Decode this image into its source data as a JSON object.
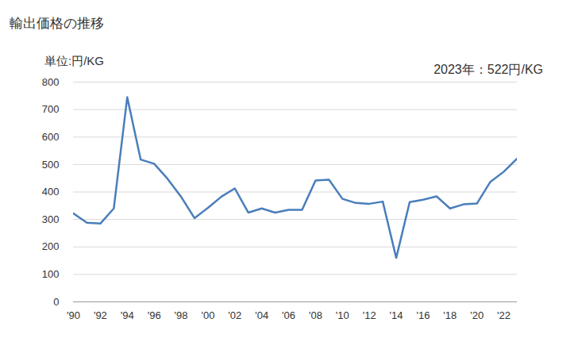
{
  "chart_data": {
    "type": "line",
    "title": "輸出価格の推移",
    "y_label": "単位:円/KG",
    "annotation": "2023年：522円/KG",
    "color": "#4a7ebb",
    "x": [
      1990,
      1991,
      1992,
      1993,
      1994,
      1995,
      1996,
      1997,
      1998,
      1999,
      2000,
      2001,
      2002,
      2003,
      2004,
      2005,
      2006,
      2007,
      2008,
      2009,
      2010,
      2011,
      2012,
      2013,
      2014,
      2015,
      2016,
      2017,
      2018,
      2019,
      2020,
      2021,
      2022,
      2023
    ],
    "values": [
      322,
      288,
      285,
      340,
      745,
      518,
      503,
      448,
      383,
      305,
      342,
      383,
      413,
      325,
      340,
      325,
      335,
      335,
      442,
      445,
      375,
      360,
      357,
      365,
      160,
      363,
      372,
      384,
      340,
      355,
      358,
      437,
      474,
      522
    ],
    "xlim": [
      1990,
      2023
    ],
    "xticks": [
      {
        "value": 1990,
        "label": "'90"
      },
      {
        "value": 1992,
        "label": "'92"
      },
      {
        "value": 1994,
        "label": "'94"
      },
      {
        "value": 1996,
        "label": "'96"
      },
      {
        "value": 1998,
        "label": "'98"
      },
      {
        "value": 2000,
        "label": "'00"
      },
      {
        "value": 2002,
        "label": "'02"
      },
      {
        "value": 2004,
        "label": "'04"
      },
      {
        "value": 2006,
        "label": "'06"
      },
      {
        "value": 2008,
        "label": "'08"
      },
      {
        "value": 2010,
        "label": "'10"
      },
      {
        "value": 2012,
        "label": "'12"
      },
      {
        "value": 2014,
        "label": "'14"
      },
      {
        "value": 2016,
        "label": "'16"
      },
      {
        "value": 2018,
        "label": "'18"
      },
      {
        "value": 2020,
        "label": "'20"
      },
      {
        "value": 2022,
        "label": "'22"
      }
    ],
    "ylim": [
      0,
      800
    ],
    "yticks": [
      0,
      100,
      200,
      300,
      400,
      500,
      600,
      700,
      800
    ],
    "grid": true
  }
}
